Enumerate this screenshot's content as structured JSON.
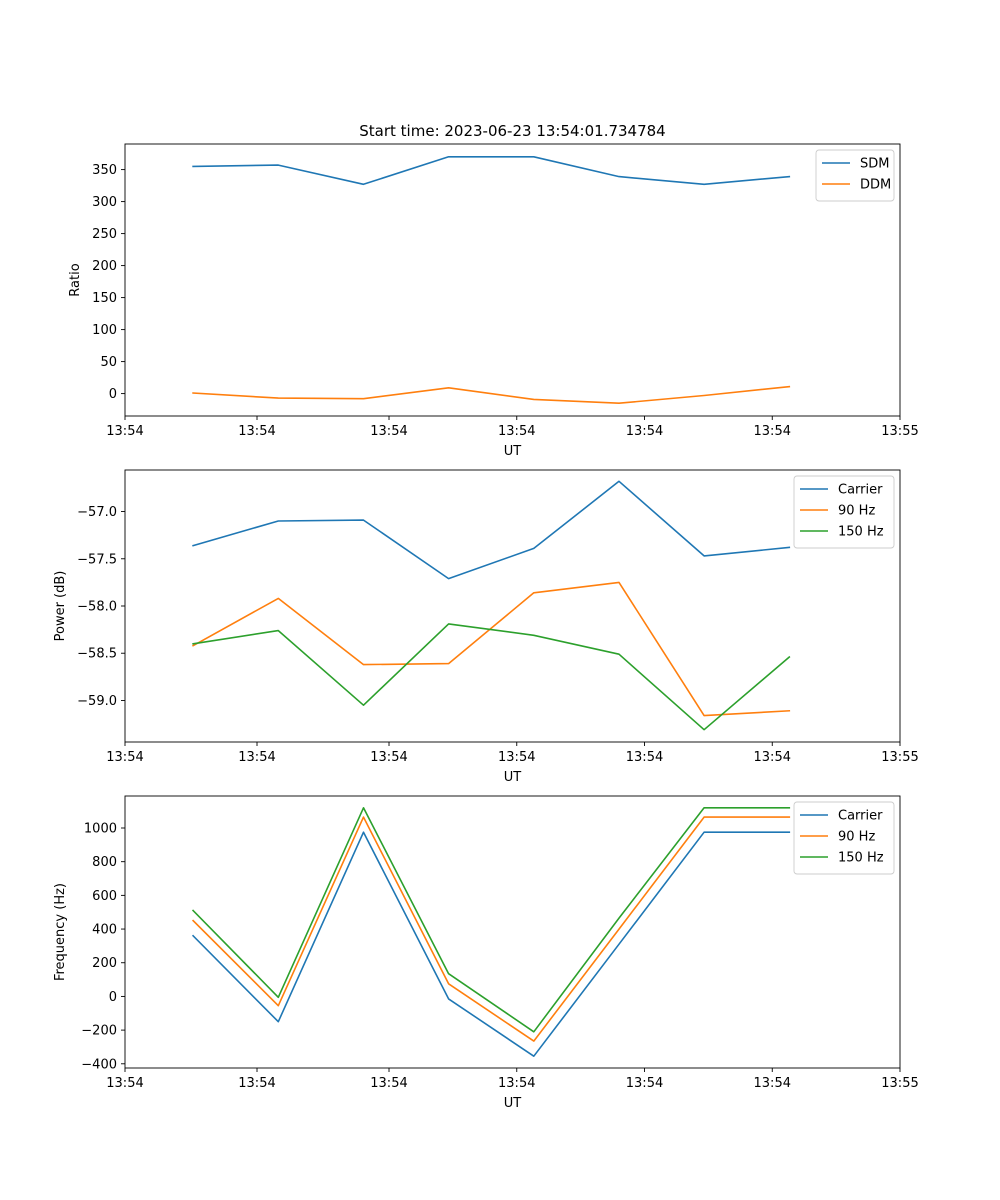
{
  "figure_title": "Start time: 2023-06-23 13:54:01.734784",
  "chart_data": [
    {
      "type": "line",
      "title": "Start time: 2023-06-23 13:54:01.734784",
      "xlabel": "UT",
      "ylabel": "Ratio",
      "x": [
        1,
        2,
        3,
        4,
        5,
        6,
        7,
        8
      ],
      "xlim": [
        0.2,
        9.3
      ],
      "x_ticks": [
        0.2,
        1.75,
        3.3,
        4.8,
        6.3,
        7.8,
        9.3
      ],
      "x_tick_labels": [
        "13:54",
        "13:54",
        "13:54",
        "13:54",
        "13:54",
        "13:54",
        "13:55"
      ],
      "ylim": [
        -35,
        390
      ],
      "y_ticks": [
        0,
        50,
        100,
        150,
        200,
        250,
        300,
        350
      ],
      "y_tick_labels": [
        "0",
        "50",
        "100",
        "150",
        "200",
        "250",
        "300",
        "350"
      ],
      "legend": "upper right",
      "series": [
        {
          "name": "SDM",
          "color": "#1f77b4",
          "values": [
            355,
            357,
            327,
            370,
            370,
            339,
            327,
            339
          ]
        },
        {
          "name": "DDM",
          "color": "#ff7f0e",
          "values": [
            1,
            -7,
            -8,
            9,
            -9,
            -15,
            -3,
            11
          ]
        }
      ]
    },
    {
      "type": "line",
      "xlabel": "UT",
      "ylabel": "Power (dB)",
      "x": [
        1,
        2,
        3,
        4,
        5,
        6,
        7,
        8
      ],
      "xlim": [
        0.2,
        9.3
      ],
      "x_ticks": [
        0.2,
        1.75,
        3.3,
        4.8,
        6.3,
        7.8,
        9.3
      ],
      "x_tick_labels": [
        "13:54",
        "13:54",
        "13:54",
        "13:54",
        "13:54",
        "13:54",
        "13:55"
      ],
      "ylim": [
        -59.44,
        -56.56
      ],
      "y_ticks": [
        -57.0,
        -57.5,
        -58.0,
        -58.5,
        -59.0
      ],
      "y_tick_labels": [
        "−57.0",
        "−57.5",
        "−58.0",
        "−58.5",
        "−59.0"
      ],
      "legend": "upper right",
      "series": [
        {
          "name": "Carrier",
          "color": "#1f77b4",
          "values": [
            -57.36,
            -57.1,
            -57.09,
            -57.71,
            -57.39,
            -56.68,
            -57.47,
            -57.38
          ]
        },
        {
          "name": "90 Hz",
          "color": "#ff7f0e",
          "values": [
            -58.42,
            -57.92,
            -58.62,
            -58.61,
            -57.86,
            -57.75,
            -59.16,
            -59.11
          ]
        },
        {
          "name": "150 Hz",
          "color": "#2ca02c",
          "values": [
            -58.4,
            -58.26,
            -59.05,
            -58.19,
            -58.31,
            -58.51,
            -59.31,
            -58.54
          ]
        }
      ]
    },
    {
      "type": "line",
      "xlabel": "UT",
      "ylabel": "Frequency (Hz)",
      "x": [
        1,
        2,
        3,
        4,
        5,
        6,
        7,
        8
      ],
      "xlim": [
        0.2,
        9.3
      ],
      "x_ticks": [
        0.2,
        1.75,
        3.3,
        4.8,
        6.3,
        7.8,
        9.3
      ],
      "x_tick_labels": [
        "13:54",
        "13:54",
        "13:54",
        "13:54",
        "13:54",
        "13:54",
        "13:55"
      ],
      "ylim": [
        -425,
        1190
      ],
      "y_ticks": [
        -400,
        -200,
        0,
        200,
        400,
        600,
        800,
        1000
      ],
      "y_tick_labels": [
        "−400",
        "−200",
        "0",
        "200",
        "400",
        "600",
        "800",
        "1000"
      ],
      "legend": "upper right",
      "series": [
        {
          "name": "Carrier",
          "color": "#1f77b4",
          "values": [
            360,
            -150,
            975,
            -15,
            -355,
            310,
            975,
            975
          ]
        },
        {
          "name": "90 Hz",
          "color": "#ff7f0e",
          "values": [
            450,
            -55,
            1065,
            75,
            -265,
            400,
            1065,
            1065
          ]
        },
        {
          "name": "150 Hz",
          "color": "#2ca02c",
          "values": [
            510,
            -5,
            1120,
            135,
            -210,
            465,
            1120,
            1120
          ]
        }
      ]
    }
  ]
}
